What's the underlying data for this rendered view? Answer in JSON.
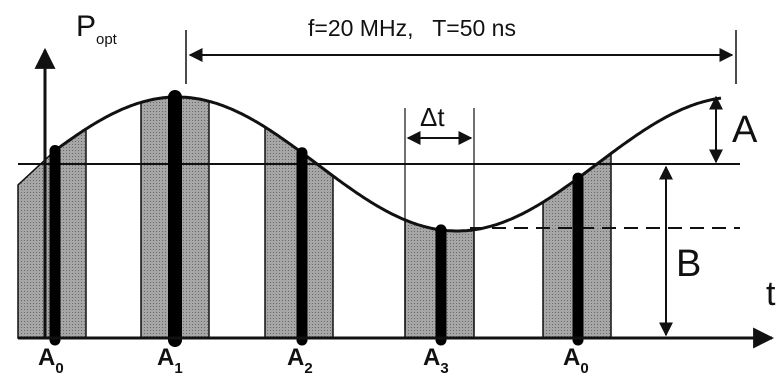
{
  "title": "f=20 MHz,   T=50 ns",
  "y_axis": {
    "main": "P",
    "sub": "opt"
  },
  "x_axis_label": "t",
  "delta_t_label": "Δt",
  "amplitude_label": "A",
  "offset_label": "B",
  "samples": [
    {
      "main": "A",
      "sub": "0"
    },
    {
      "main": "A",
      "sub": "1"
    },
    {
      "main": "A",
      "sub": "2"
    },
    {
      "main": "A",
      "sub": "3"
    },
    {
      "main": "A",
      "sub": "0"
    }
  ],
  "colors": {
    "ink": "#111111",
    "fill": "#999999",
    "bar": "#000000",
    "background": "#ffffff"
  }
}
